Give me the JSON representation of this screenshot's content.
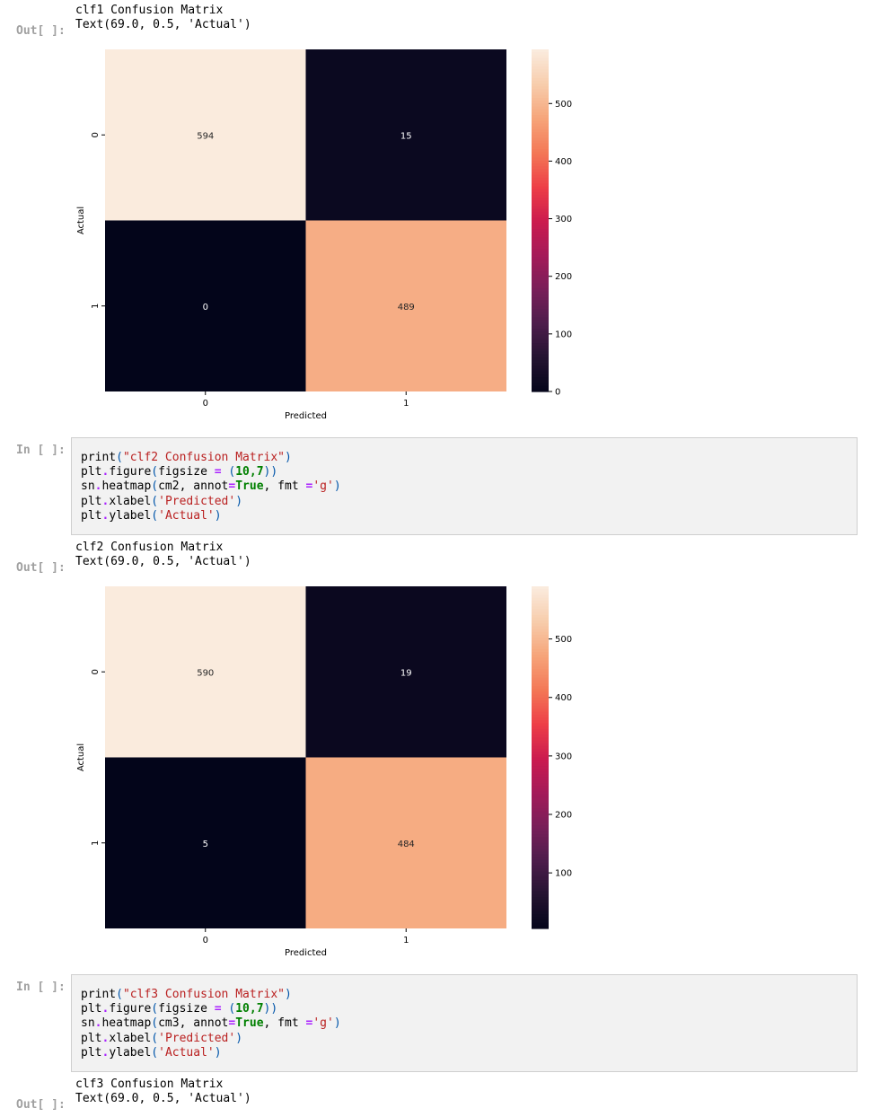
{
  "prompts": {
    "in": "In [ ]:",
    "out": "Out[ ]:"
  },
  "outputs": [
    {
      "line1": "clf1 Confusion Matrix",
      "line2": "Text(69.0, 0.5, 'Actual')"
    },
    {
      "line1": "clf2 Confusion Matrix",
      "line2": "Text(69.0, 0.5, 'Actual')"
    },
    {
      "line1": "clf3 Confusion Matrix",
      "line2": "Text(69.0, 0.5, 'Actual')"
    }
  ],
  "code_cells": [
    {
      "title": "clf2 Confusion Matrix",
      "var": "cm2",
      "size": "10,7",
      "xlabel": "Predicted",
      "ylabel": "Actual",
      "annot": "True",
      "fmt": "g"
    },
    {
      "title": "clf3 Confusion Matrix",
      "var": "cm3",
      "size": "10,7",
      "xlabel": "Predicted",
      "ylabel": "Actual",
      "annot": "True",
      "fmt": "g"
    }
  ],
  "chart_data": [
    {
      "type": "heatmap",
      "xlabel": "Predicted",
      "ylabel": "Actual",
      "x_categories": [
        "0",
        "1"
      ],
      "y_categories": [
        "0",
        "1"
      ],
      "values": [
        [
          594,
          15
        ],
        [
          0,
          489
        ]
      ],
      "colorbar": {
        "min": 0,
        "max": 594,
        "ticks": [
          0,
          100,
          200,
          300,
          400,
          500
        ]
      },
      "colormap": "rocket"
    },
    {
      "type": "heatmap",
      "xlabel": "Predicted",
      "ylabel": "Actual",
      "x_categories": [
        "0",
        "1"
      ],
      "y_categories": [
        "0",
        "1"
      ],
      "values": [
        [
          590,
          19
        ],
        [
          5,
          484
        ]
      ],
      "colorbar": {
        "min": 5,
        "max": 590,
        "ticks": [
          100,
          200,
          300,
          400,
          500
        ]
      },
      "colormap": "rocket"
    }
  ]
}
